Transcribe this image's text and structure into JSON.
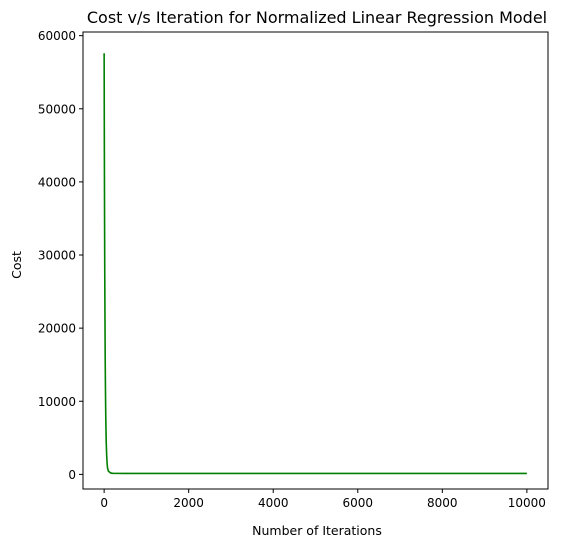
{
  "chart_data": {
    "type": "line",
    "title": "Cost v/s Iteration for Normalized Linear Regression Model",
    "xlabel": "Number of Iterations",
    "ylabel": "Cost",
    "xlim": [
      -500,
      10500
    ],
    "ylim": [
      -2000,
      60500
    ],
    "xticks": [
      0,
      2000,
      4000,
      6000,
      8000,
      10000
    ],
    "yticks": [
      0,
      10000,
      20000,
      30000,
      40000,
      50000,
      60000
    ],
    "grid": false,
    "legend": "none",
    "series": [
      {
        "name": "Cost",
        "color": "#008000",
        "x": [
          0,
          5,
          10,
          15,
          20,
          25,
          30,
          35,
          40,
          50,
          60,
          70,
          80,
          100,
          150,
          200,
          500,
          1000,
          2000,
          4000,
          6000,
          8000,
          10000
        ],
        "y": [
          57600,
          45000,
          35000,
          27000,
          21000,
          16000,
          12500,
          9500,
          7300,
          4300,
          2600,
          1500,
          900,
          450,
          200,
          150,
          130,
          130,
          130,
          130,
          130,
          130,
          130
        ]
      }
    ]
  }
}
